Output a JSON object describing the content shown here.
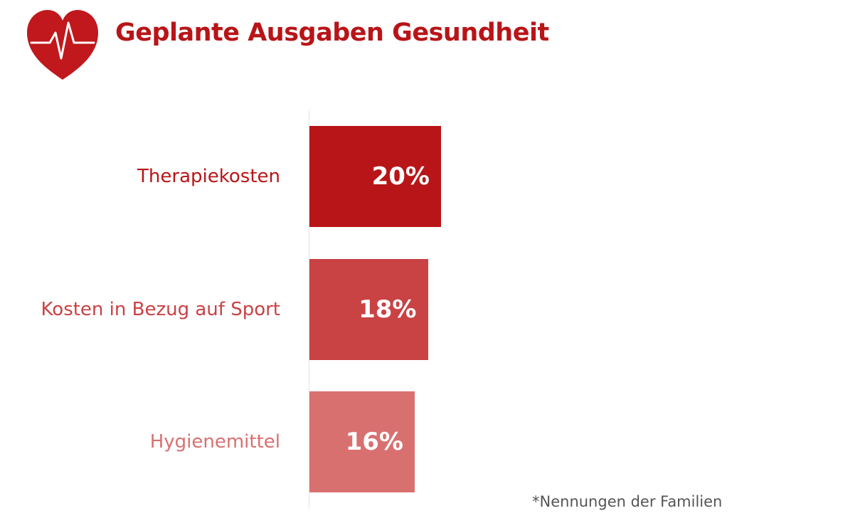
{
  "header": {
    "title": "Geplante Ausgaben Gesundheit",
    "icon": "heart-pulse-icon",
    "brand_color": "#b81518"
  },
  "chart_data": {
    "type": "bar",
    "orientation": "horizontal",
    "categories": [
      "Therapiekosten",
      "Kosten in Bezug auf Sport",
      "Hygienemittel"
    ],
    "values": [
      20,
      18,
      16
    ],
    "value_labels": [
      "20%",
      "18%",
      "16%"
    ],
    "colors": [
      "#b81518",
      "#c94244",
      "#d97070"
    ],
    "unit": "%",
    "title": "Geplante Ausgaben Gesundheit",
    "xlabel": "",
    "ylabel": "",
    "grid": false,
    "legend": "none"
  },
  "footnote": "*Nennungen der Familien"
}
